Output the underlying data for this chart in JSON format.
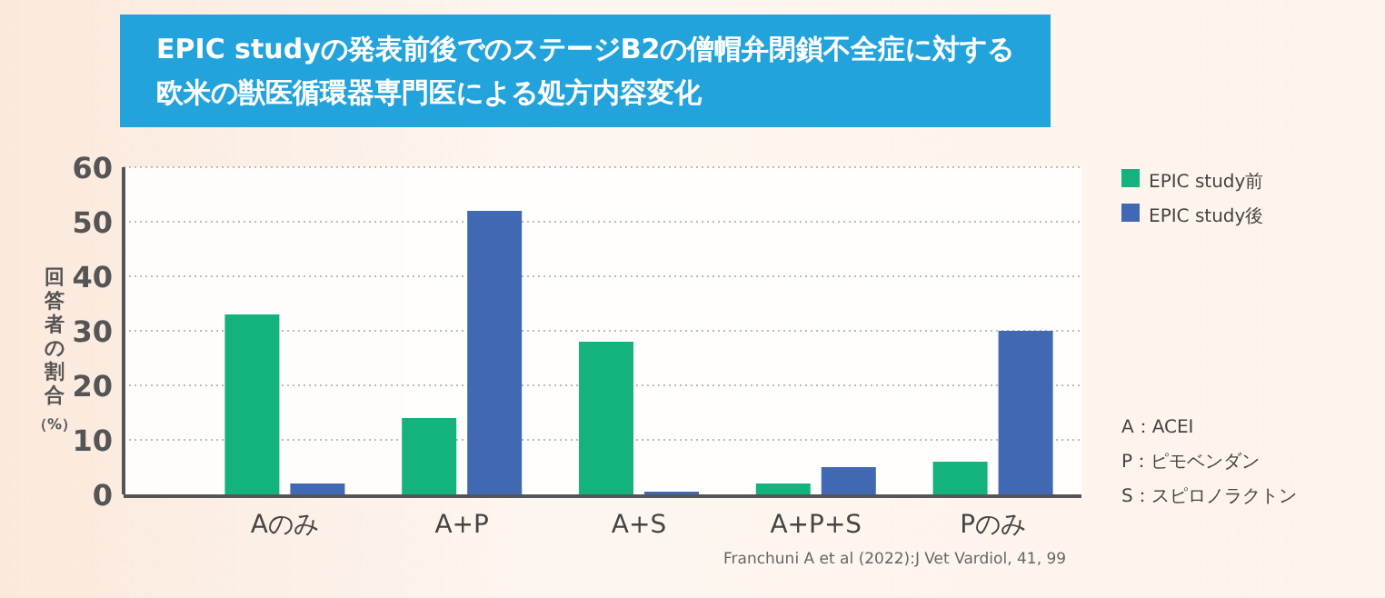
{
  "chart_data": {
    "type": "bar",
    "title": "EPIC studyの発表前後でのステージB2の僧帽弁閉鎖不全症に対する欧米の獣医循環器専門医による処方内容変化",
    "ylabel": "回答者の割合（%）",
    "categories": [
      "Aのみ",
      "A+P",
      "A+S",
      "A+P+S",
      "Pのみ"
    ],
    "series": [
      {
        "name": "EPIC study前",
        "color": "#14b37d",
        "values": [
          33,
          14,
          28,
          2,
          6
        ]
      },
      {
        "name": "EPIC study後",
        "color": "#4168b2",
        "values": [
          2,
          52,
          0.5,
          5,
          30
        ]
      }
    ],
    "ylim": [
      0,
      60
    ],
    "yticks": [
      0,
      10,
      20,
      30,
      40,
      50,
      60
    ],
    "grid": "y",
    "legend": "right",
    "annotations": [
      "A：ACEI",
      "P：ピモベンダン",
      "S：スピロノラクトン",
      "Franchuni A et al (2022):J Vet Vardiol, 41, 99"
    ]
  }
}
